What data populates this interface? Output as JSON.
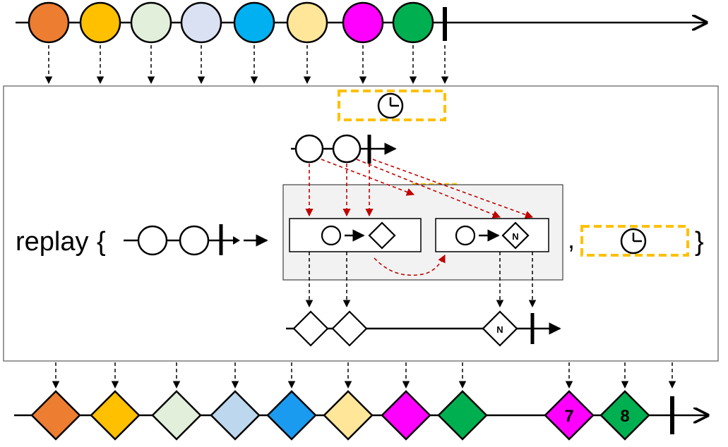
{
  "operator": {
    "name": "replay",
    "open_brace": "{",
    "close_brace": "}",
    "comma": ","
  },
  "marker_labels": {
    "inner_last_diamond": "N",
    "inner_box_diamond": "N",
    "output_seven": "7",
    "output_eight": "8"
  },
  "colors": {
    "source": [
      "#ED7D31",
      "#FFC000",
      "#E2EFDA",
      "#D9E1F2",
      "#00B0F0",
      "#FFE699",
      "#FF00FF",
      "#00B050"
    ],
    "output": [
      "#ED7D31",
      "#FFC000",
      "#E2EFDA",
      "#BDD7EE",
      "#1A9BF0",
      "#FFE699",
      "#FF00FF",
      "#00B050",
      "#FF00FF",
      "#00B050"
    ],
    "accent_dashed_box": "#FFC000",
    "red_arrow": "#C00000",
    "inner_panel_bg": "#F2F2F2"
  },
  "icons": [
    "clock-icon",
    "clock-icon",
    "clock-icon"
  ]
}
